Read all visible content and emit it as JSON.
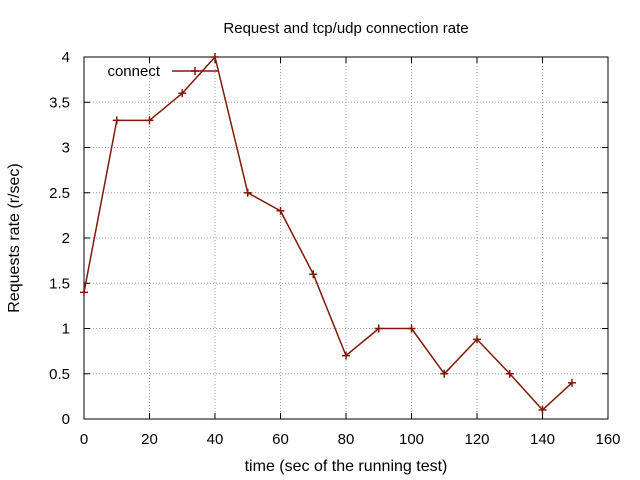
{
  "chart_data": {
    "type": "line",
    "title": "Request and tcp/udp connection rate",
    "xlabel": "time (sec of the running test)",
    "ylabel": "Requests rate (r/sec)",
    "xlim": [
      0,
      160
    ],
    "ylim": [
      0,
      4
    ],
    "xticks": [
      0,
      20,
      40,
      60,
      80,
      100,
      120,
      140,
      160
    ],
    "yticks": [
      0,
      0.5,
      1,
      1.5,
      2,
      2.5,
      3,
      3.5,
      4
    ],
    "xtick_labels": [
      "0",
      "20",
      "40",
      "60",
      "80",
      "100",
      "120",
      "140",
      "160"
    ],
    "ytick_labels": [
      "0",
      "0.5",
      "1",
      "1.5",
      "2",
      "2.5",
      "3",
      "3.5",
      "4"
    ],
    "grid": true,
    "legend_position": "top-left",
    "series": [
      {
        "name": "connect",
        "color": "#7f1a0a",
        "marker": "plus",
        "x": [
          0,
          10,
          20,
          30,
          40,
          50,
          60,
          70,
          80,
          90,
          100,
          110,
          120,
          130,
          140,
          149
        ],
        "y": [
          1.4,
          3.3,
          3.3,
          3.6,
          4.0,
          2.5,
          2.3,
          1.6,
          0.7,
          1.0,
          1.0,
          0.5,
          0.88,
          0.5,
          0.1,
          0.4
        ]
      }
    ]
  }
}
